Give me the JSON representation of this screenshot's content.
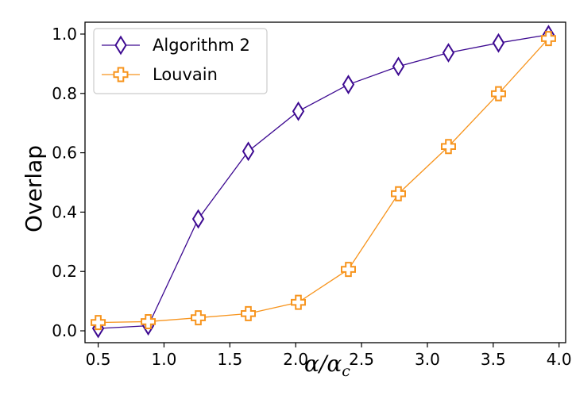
{
  "chart_data": {
    "type": "line",
    "xlabel": {
      "main": "α/α",
      "sub": "c"
    },
    "ylabel": "Overlap",
    "xlim": [
      0.4,
      4.05
    ],
    "ylim": [
      -0.04,
      1.04
    ],
    "xticks": [
      "0.5",
      "1.0",
      "1.5",
      "2.0",
      "2.5",
      "3.0",
      "3.5",
      "4.0"
    ],
    "xtick_values": [
      0.5,
      1.0,
      1.5,
      2.0,
      2.5,
      3.0,
      3.5,
      4.0
    ],
    "yticks": [
      "0.0",
      "0.2",
      "0.4",
      "0.6",
      "0.8",
      "1.0"
    ],
    "ytick_values": [
      0.0,
      0.2,
      0.4,
      0.6,
      0.8,
      1.0
    ],
    "grid": false,
    "legend_position": "top-left",
    "x": [
      0.5,
      0.88,
      1.26,
      1.64,
      2.02,
      2.4,
      2.78,
      3.16,
      3.54,
      3.92
    ],
    "series": [
      {
        "name": "Algorithm 2",
        "marker": "thin-diamond",
        "color": "#3d0a91",
        "values": [
          0.008,
          0.017,
          0.377,
          0.605,
          0.74,
          0.83,
          0.891,
          0.937,
          0.97,
          0.998
        ]
      },
      {
        "name": "Louvain",
        "marker": "plus-filled",
        "color": "#f7941d",
        "values": [
          0.028,
          0.031,
          0.044,
          0.058,
          0.096,
          0.207,
          0.462,
          0.621,
          0.799,
          0.985
        ]
      }
    ]
  }
}
